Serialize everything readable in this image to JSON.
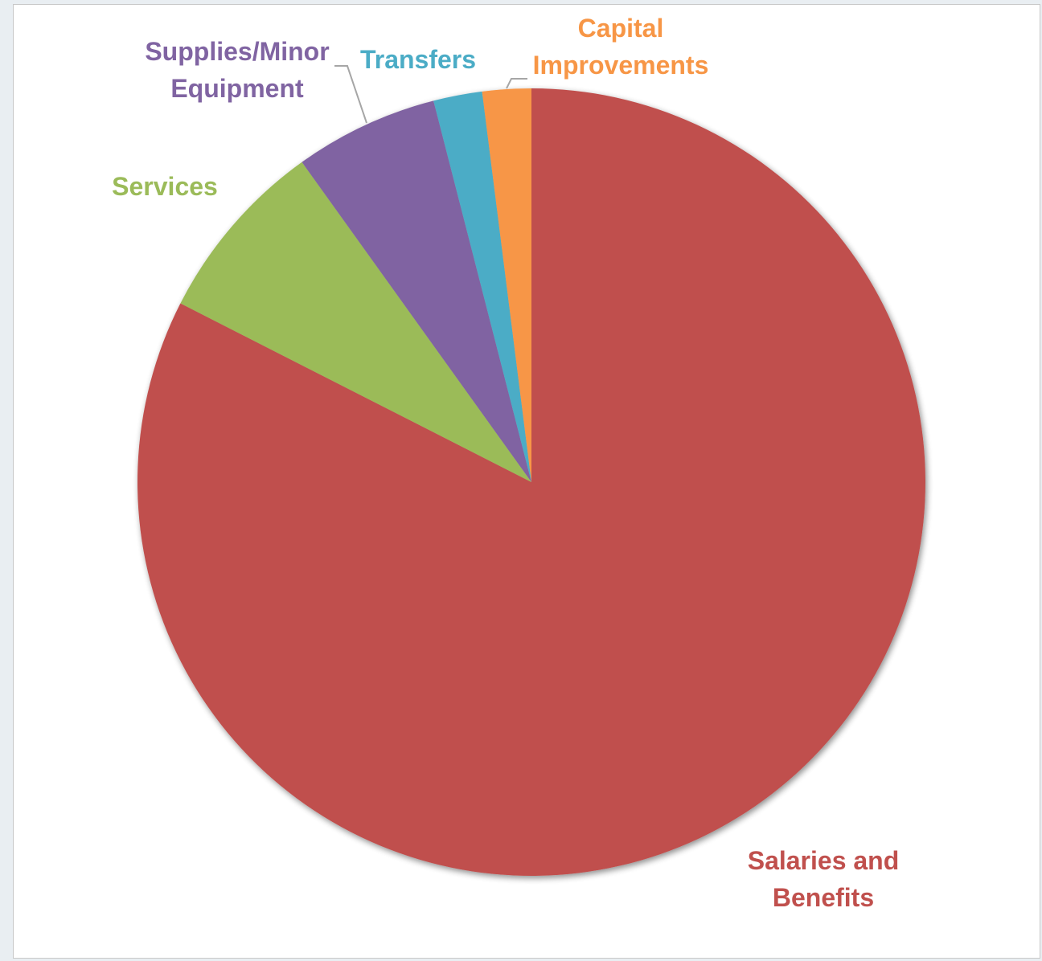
{
  "chart_data": {
    "type": "pie",
    "title": "",
    "start_angle_deg": 0,
    "direction": "clockwise",
    "legend": "none",
    "slices": [
      {
        "name": "Salaries and Benefits",
        "label_lines": [
          "Salaries and",
          "Benefits"
        ],
        "value": 82.5,
        "color": "#c0504d"
      },
      {
        "name": "Services",
        "label_lines": [
          "Services"
        ],
        "value": 7.6,
        "color": "#9bbb59"
      },
      {
        "name": "Supplies/Minor Equipment",
        "label_lines": [
          "Supplies/Minor",
          "Equipment"
        ],
        "value": 5.9,
        "color": "#8064a2"
      },
      {
        "name": "Transfers",
        "label_lines": [
          "Transfers"
        ],
        "value": 2.0,
        "color": "#4bacc6"
      },
      {
        "name": "Capital Improvements",
        "label_lines": [
          "Capital",
          "Improvements"
        ],
        "value": 2.0,
        "color": "#f79646"
      }
    ]
  }
}
